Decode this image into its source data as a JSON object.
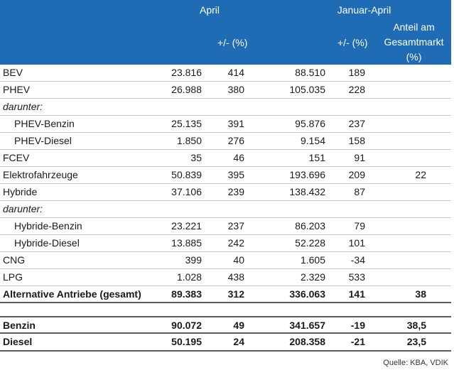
{
  "header": {
    "april": "April",
    "jan_april": "Januar-April",
    "change_1": "+/- (%)",
    "change_2": "+/- (%)",
    "share_line1": "Anteil am",
    "share_line2": "Gesamtmarkt",
    "share_line3": "(%)"
  },
  "rows": [
    {
      "label": "BEV",
      "apr": "23.816",
      "apr_chg": "414",
      "ytd": "88.510",
      "ytd_chg": "189",
      "share": ""
    },
    {
      "label": "PHEV",
      "apr": "26.988",
      "apr_chg": "380",
      "ytd": "105.035",
      "ytd_chg": "228",
      "share": ""
    },
    {
      "label": "darunter:",
      "apr": "",
      "apr_chg": "",
      "ytd": "",
      "ytd_chg": "",
      "share": ""
    },
    {
      "label": "PHEV-Benzin",
      "apr": "25.135",
      "apr_chg": "391",
      "ytd": "95.876",
      "ytd_chg": "237",
      "share": ""
    },
    {
      "label": "PHEV-Diesel",
      "apr": "1.850",
      "apr_chg": "276",
      "ytd": "9.154",
      "ytd_chg": "158",
      "share": ""
    },
    {
      "label": "FCEV",
      "apr": "35",
      "apr_chg": "46",
      "ytd": "151",
      "ytd_chg": "91",
      "share": ""
    },
    {
      "label": "Elektrofahrzeuge",
      "apr": "50.839",
      "apr_chg": "395",
      "ytd": "193.696",
      "ytd_chg": "209",
      "share": "22"
    },
    {
      "label": "Hybride",
      "apr": "37.106",
      "apr_chg": "239",
      "ytd": "138.432",
      "ytd_chg": "87",
      "share": ""
    },
    {
      "label": "darunter:",
      "apr": "",
      "apr_chg": "",
      "ytd": "",
      "ytd_chg": "",
      "share": ""
    },
    {
      "label": "Hybride-Benzin",
      "apr": "23.221",
      "apr_chg": "237",
      "ytd": "86.203",
      "ytd_chg": "79",
      "share": ""
    },
    {
      "label": "Hybride-Diesel",
      "apr": "13.885",
      "apr_chg": "242",
      "ytd": "52.228",
      "ytd_chg": "101",
      "share": ""
    },
    {
      "label": "CNG",
      "apr": "399",
      "apr_chg": "40",
      "ytd": "1.605",
      "ytd_chg": "-34",
      "share": ""
    },
    {
      "label": "LPG",
      "apr": "1.028",
      "apr_chg": "438",
      "ytd": "2.329",
      "ytd_chg": "533",
      "share": ""
    },
    {
      "label": "Alternative Antriebe (gesamt)",
      "apr": "89.383",
      "apr_chg": "312",
      "ytd": "336.063",
      "ytd_chg": "141",
      "share": "38"
    },
    {
      "label": "Benzin",
      "apr": "90.072",
      "apr_chg": "49",
      "ytd": "341.657",
      "ytd_chg": "-19",
      "share": "38,5"
    },
    {
      "label": "Diesel",
      "apr": "50.195",
      "apr_chg": "24",
      "ytd": "208.358",
      "ytd_chg": "-21",
      "share": "23,5"
    }
  ],
  "source": "Quelle: KBA, VDIK",
  "colors": {
    "header_bg": "#1f6cb5",
    "header_text": "#ffffff"
  }
}
